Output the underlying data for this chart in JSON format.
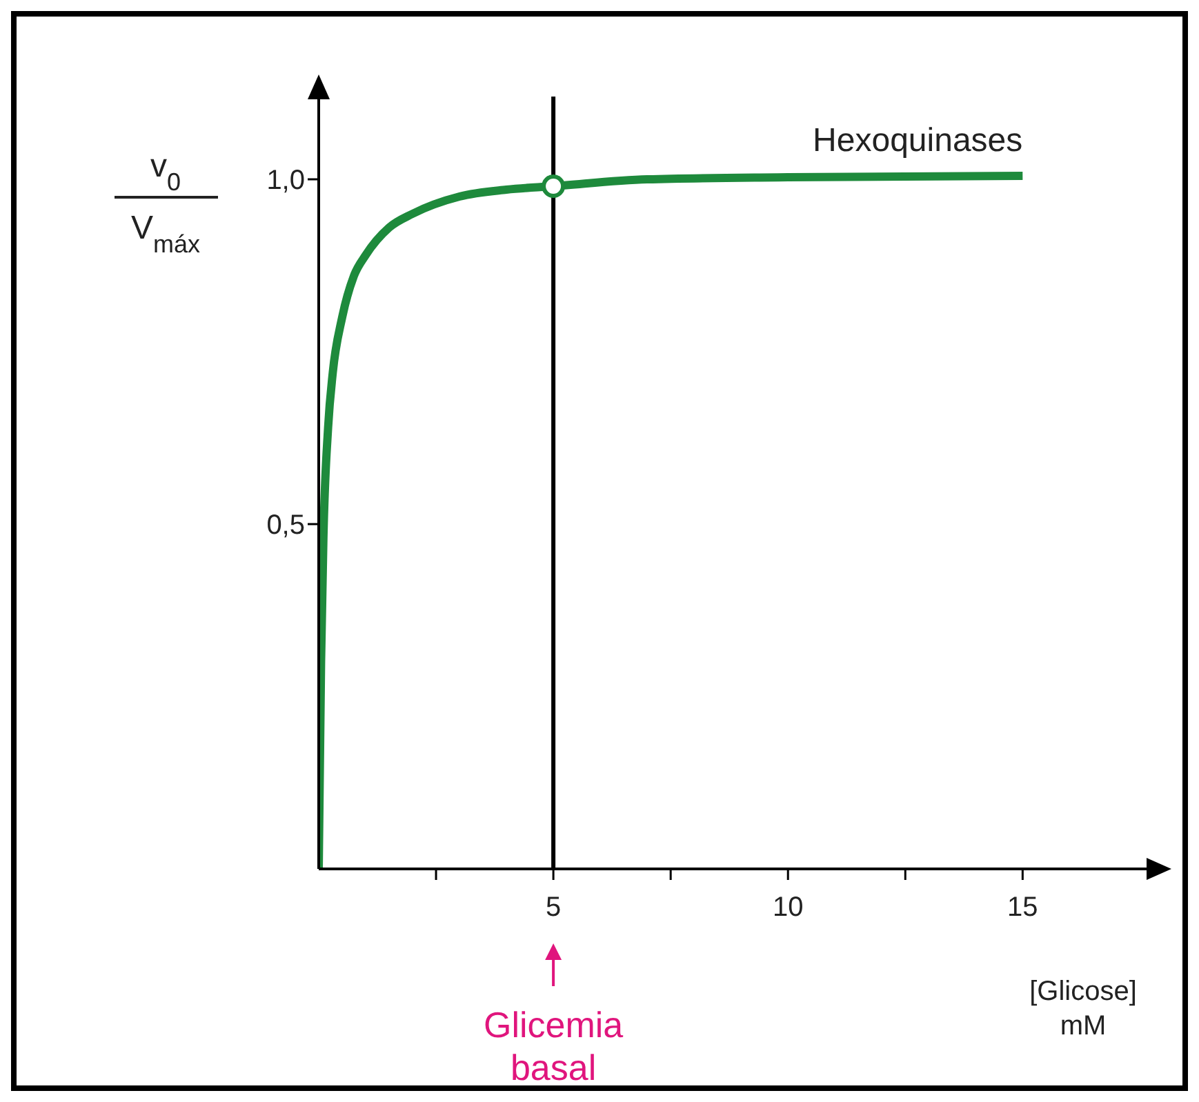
{
  "chart_data": {
    "type": "line",
    "xlabel": "[Glicose] mM",
    "ylabel": "v$_{0}$ V$_{máx}$",
    "series": [
      {
        "name": "Hexoquinases",
        "color": "#1e8a3c",
        "x": [
          0,
          0.05,
          0.1,
          0.2,
          0.3,
          0.5,
          0.75,
          1,
          1.5,
          2,
          3,
          4,
          5,
          7,
          10,
          15
        ],
        "values": [
          0,
          0.3,
          0.48,
          0.64,
          0.72,
          0.8,
          0.86,
          0.89,
          0.93,
          0.95,
          0.975,
          0.985,
          0.99,
          1.0,
          1.003,
          1.005
        ]
      },
      {
        "type": "scatter",
        "color": "#1e8a3c",
        "x": [
          5
        ],
        "values": [
          0.99
        ],
        "marker": "circle"
      }
    ],
    "xlim": [
      0,
      17.7
    ],
    "ylim": [
      0,
      1.12
    ],
    "xticks": [
      {
        "value": 2.5,
        "label": null
      },
      5,
      {
        "value": 7.5,
        "label": null
      },
      10,
      {
        "value": 12.5,
        "label": null
      },
      15
    ],
    "yticks": [
      {
        "value": 0.5,
        "label": "0,5"
      },
      {
        "value": 1.0,
        "label": "1,0"
      }
    ],
    "ref_lines": [
      {
        "axis": "x",
        "value": 5,
        "color": "#000000"
      }
    ],
    "annotations": [
      "Glicemia basal"
    ],
    "marker": "none",
    "line_style": "solid"
  }
}
